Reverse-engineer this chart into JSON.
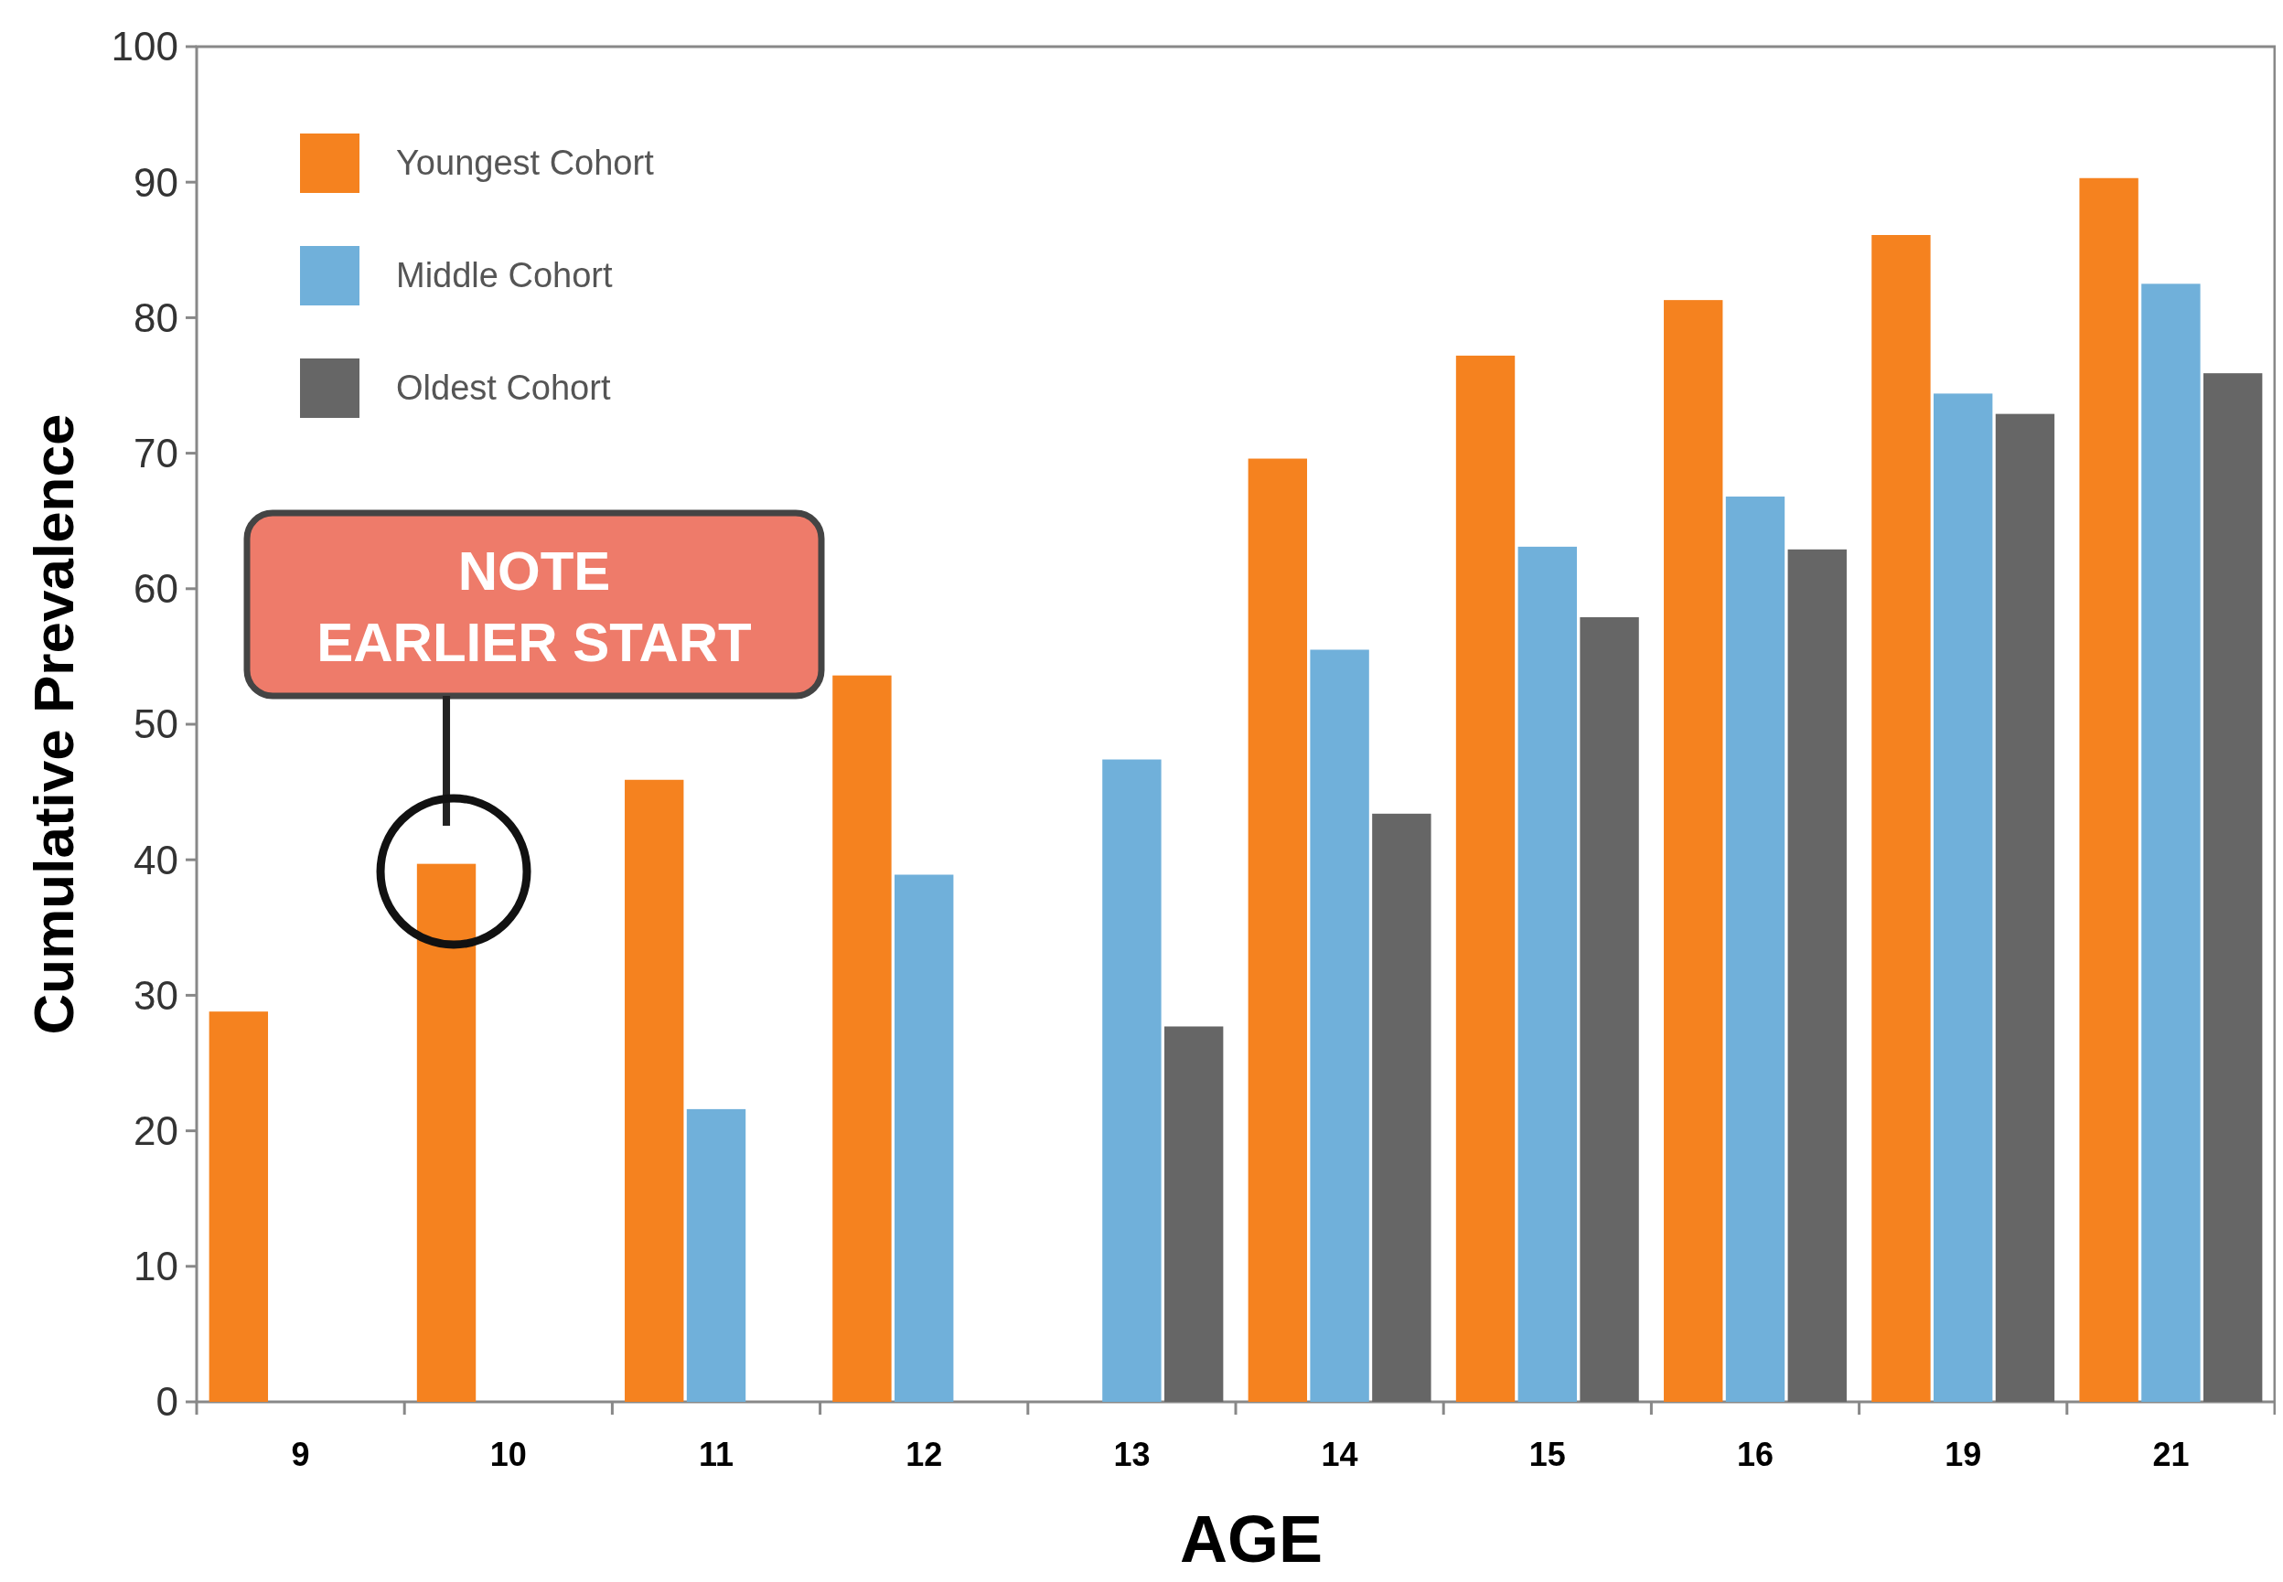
{
  "chart_data": {
    "type": "bar",
    "xlabel": "AGE",
    "ylabel": "Cumulative Prevalence",
    "categories": [
      "9",
      "10",
      "11",
      "12",
      "13",
      "14",
      "15",
      "16",
      "19",
      "21"
    ],
    "series": [
      {
        "name": "Youngest Cohort",
        "color": "#f5821f",
        "values": [
          28.8,
          39.7,
          45.9,
          53.6,
          null,
          69.6,
          77.2,
          81.3,
          86.1,
          90.3
        ]
      },
      {
        "name": "Middle Cohort",
        "color": "#70b0da",
        "values": [
          null,
          null,
          21.6,
          38.9,
          47.4,
          55.5,
          63.1,
          66.8,
          74.4,
          82.5
        ]
      },
      {
        "name": "Oldest Cohort",
        "color": "#666666",
        "values": [
          null,
          null,
          null,
          null,
          27.7,
          43.4,
          57.9,
          62.9,
          72.9,
          75.9
        ]
      }
    ],
    "ylim": [
      0,
      100
    ],
    "yticks": [
      0,
      10,
      20,
      30,
      40,
      50,
      60,
      70,
      80,
      90,
      100
    ],
    "grid": false,
    "legend": "top left",
    "annotations": [
      "NOTE EARLIER START"
    ]
  }
}
